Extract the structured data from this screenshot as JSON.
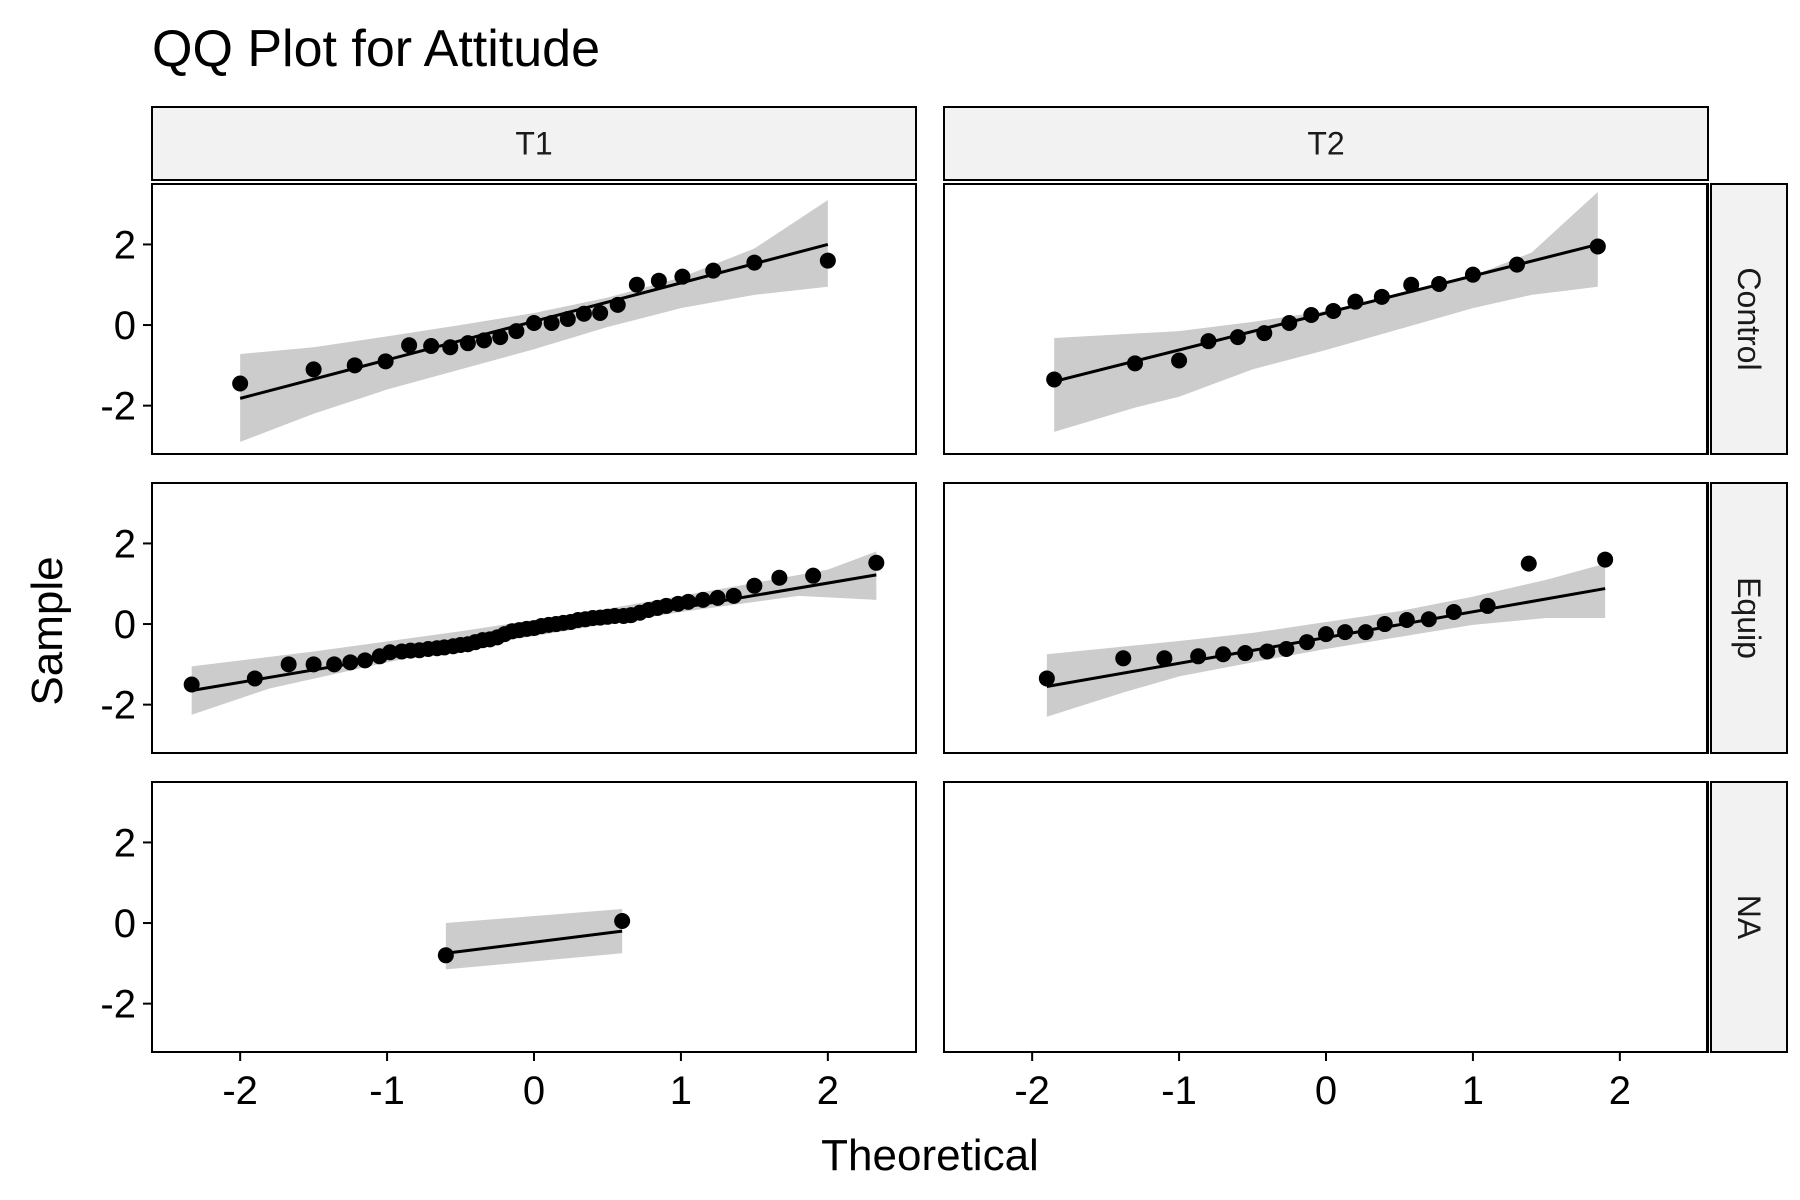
{
  "chart_data": {
    "type": "scatter",
    "title": "QQ Plot for Attitude",
    "xlabel": "Theoretical",
    "ylabel": "Sample",
    "xlim": [
      -2.6,
      2.6
    ],
    "ylim": [
      -3.2,
      3.5
    ],
    "x_ticks": [
      "-2",
      "-1",
      "0",
      "1",
      "2"
    ],
    "y_ticks": [
      "-2",
      "0",
      "2"
    ],
    "columns": [
      "T1",
      "T2"
    ],
    "rows": [
      "Control",
      "Equip",
      "NA"
    ],
    "grid": false,
    "legend": "none",
    "colors": {
      "points": "#000000",
      "line": "#000000",
      "band": "#cccccc",
      "strip": "#f2f2f2"
    },
    "panels": [
      {
        "row": "Control",
        "col": "T1",
        "x": [
          -2.0,
          -1.5,
          -1.22,
          -1.01,
          -0.85,
          -0.7,
          -0.57,
          -0.45,
          -0.34,
          -0.23,
          -0.12,
          0.0,
          0.12,
          0.23,
          0.34,
          0.45,
          0.57,
          0.7,
          0.85,
          1.01,
          1.22,
          1.5,
          2.0
        ],
        "y": [
          -1.45,
          -1.1,
          -1.0,
          -0.9,
          -0.5,
          -0.52,
          -0.55,
          -0.45,
          -0.38,
          -0.3,
          -0.15,
          0.05,
          0.05,
          0.15,
          0.28,
          0.3,
          0.5,
          1.0,
          1.1,
          1.2,
          1.35,
          1.55,
          1.6
        ],
        "line": [
          [
            -2.0,
            -1.82
          ],
          [
            2.0,
            2.0
          ]
        ],
        "band_upper": [
          [
            -2.0,
            -0.72
          ],
          [
            -1.5,
            -0.55
          ],
          [
            -1.0,
            -0.28
          ],
          [
            -0.5,
            0.0
          ],
          [
            0.0,
            0.3
          ],
          [
            0.5,
            0.68
          ],
          [
            1.0,
            1.18
          ],
          [
            1.5,
            1.9
          ],
          [
            2.0,
            3.1
          ]
        ],
        "band_lower": [
          [
            -2.0,
            -2.9
          ],
          [
            -1.5,
            -2.2
          ],
          [
            -1.0,
            -1.6
          ],
          [
            -0.5,
            -1.1
          ],
          [
            0.0,
            -0.6
          ],
          [
            0.5,
            -0.05
          ],
          [
            1.0,
            0.42
          ],
          [
            1.5,
            0.75
          ],
          [
            2.0,
            0.95
          ]
        ]
      },
      {
        "row": "Control",
        "col": "T2",
        "x": [
          -1.85,
          -1.3,
          -1.0,
          -0.8,
          -0.6,
          -0.42,
          -0.25,
          -0.1,
          0.05,
          0.2,
          0.38,
          0.58,
          0.77,
          1.0,
          1.3,
          1.85
        ],
        "y": [
          -1.35,
          -0.95,
          -0.88,
          -0.4,
          -0.3,
          -0.2,
          0.05,
          0.25,
          0.35,
          0.58,
          0.7,
          1.0,
          1.02,
          1.25,
          1.5,
          1.95
        ],
        "line": [
          [
            -1.85,
            -1.4
          ],
          [
            1.85,
            2.0
          ]
        ],
        "band_upper": [
          [
            -1.85,
            -0.32
          ],
          [
            -1.0,
            -0.15
          ],
          [
            -0.5,
            0.08
          ],
          [
            0.0,
            0.35
          ],
          [
            0.5,
            0.75
          ],
          [
            1.0,
            1.22
          ],
          [
            1.4,
            1.8
          ],
          [
            1.85,
            3.3
          ]
        ],
        "band_lower": [
          [
            -1.85,
            -2.65
          ],
          [
            -1.3,
            -2.05
          ],
          [
            -1.0,
            -1.78
          ],
          [
            -0.5,
            -1.1
          ],
          [
            0.0,
            -0.62
          ],
          [
            0.5,
            -0.1
          ],
          [
            1.0,
            0.42
          ],
          [
            1.4,
            0.75
          ],
          [
            1.85,
            0.95
          ]
        ]
      },
      {
        "row": "Equip",
        "col": "T1",
        "x": [
          -2.33,
          -1.9,
          -1.67,
          -1.5,
          -1.36,
          -1.25,
          -1.15,
          -1.05,
          -0.98,
          -0.9,
          -0.84,
          -0.78,
          -0.72,
          -0.66,
          -0.61,
          -0.55,
          -0.5,
          -0.45,
          -0.4,
          -0.35,
          -0.3,
          -0.25,
          -0.2,
          -0.15,
          -0.1,
          -0.05,
          0.0,
          0.05,
          0.1,
          0.15,
          0.2,
          0.25,
          0.3,
          0.35,
          0.4,
          0.45,
          0.5,
          0.55,
          0.61,
          0.66,
          0.72,
          0.78,
          0.84,
          0.9,
          0.98,
          1.05,
          1.15,
          1.25,
          1.36,
          1.5,
          1.67,
          1.9,
          2.33
        ],
        "y": [
          -1.5,
          -1.35,
          -1.0,
          -1.0,
          -1.0,
          -0.95,
          -0.9,
          -0.8,
          -0.7,
          -0.68,
          -0.66,
          -0.65,
          -0.62,
          -0.6,
          -0.58,
          -0.55,
          -0.52,
          -0.5,
          -0.45,
          -0.4,
          -0.38,
          -0.33,
          -0.25,
          -0.18,
          -0.15,
          -0.12,
          -0.1,
          -0.05,
          -0.02,
          0.0,
          0.03,
          0.05,
          0.1,
          0.12,
          0.15,
          0.16,
          0.18,
          0.2,
          0.2,
          0.22,
          0.28,
          0.35,
          0.4,
          0.45,
          0.5,
          0.55,
          0.6,
          0.65,
          0.7,
          0.95,
          1.15,
          1.2,
          1.52
        ],
        "line": [
          [
            -2.33,
            -1.65
          ],
          [
            2.33,
            1.22
          ]
        ],
        "band_upper": [
          [
            -2.33,
            -1.05
          ],
          [
            -1.5,
            -0.68
          ],
          [
            -0.5,
            -0.18
          ],
          [
            0.0,
            0.1
          ],
          [
            0.5,
            0.38
          ],
          [
            1.0,
            0.7
          ],
          [
            1.5,
            1.02
          ],
          [
            2.0,
            1.35
          ],
          [
            2.33,
            1.8
          ]
        ],
        "band_lower": [
          [
            -2.33,
            -2.25
          ],
          [
            -1.8,
            -1.6
          ],
          [
            -1.0,
            -0.95
          ],
          [
            -0.5,
            -0.58
          ],
          [
            0.0,
            -0.3
          ],
          [
            0.5,
            0.0
          ],
          [
            1.0,
            0.3
          ],
          [
            1.8,
            0.7
          ],
          [
            2.33,
            0.6
          ]
        ]
      },
      {
        "row": "Equip",
        "col": "T2",
        "x": [
          -1.9,
          -1.38,
          -1.1,
          -0.87,
          -0.7,
          -0.55,
          -0.4,
          -0.27,
          -0.13,
          0.0,
          0.13,
          0.27,
          0.4,
          0.55,
          0.7,
          0.87,
          1.1,
          1.38,
          1.9
        ],
        "y": [
          -1.35,
          -0.85,
          -0.85,
          -0.8,
          -0.75,
          -0.72,
          -0.68,
          -0.62,
          -0.45,
          -0.25,
          -0.2,
          -0.2,
          0.0,
          0.1,
          0.12,
          0.3,
          0.45,
          1.5,
          1.6
        ],
        "line": [
          [
            -1.9,
            -1.55
          ],
          [
            1.9,
            0.88
          ]
        ],
        "band_upper": [
          [
            -1.9,
            -0.75
          ],
          [
            -1.0,
            -0.42
          ],
          [
            -0.5,
            -0.22
          ],
          [
            0.0,
            0.05
          ],
          [
            0.5,
            0.32
          ],
          [
            1.0,
            0.68
          ],
          [
            1.5,
            1.1
          ],
          [
            1.9,
            1.5
          ]
        ],
        "band_lower": [
          [
            -1.9,
            -2.3
          ],
          [
            -1.38,
            -1.7
          ],
          [
            -1.0,
            -1.3
          ],
          [
            -0.5,
            -0.95
          ],
          [
            0.0,
            -0.62
          ],
          [
            0.5,
            -0.32
          ],
          [
            1.0,
            -0.02
          ],
          [
            1.5,
            0.15
          ],
          [
            1.9,
            0.15
          ]
        ]
      },
      {
        "row": "NA",
        "col": "T1",
        "x": [
          -0.6,
          0.6
        ],
        "y": [
          -0.8,
          0.05
        ],
        "line": [
          [
            -0.6,
            -0.75
          ],
          [
            0.6,
            -0.2
          ]
        ],
        "band_upper": [
          [
            -0.6,
            0.0
          ],
          [
            0.6,
            0.35
          ]
        ],
        "band_lower": [
          [
            -0.6,
            -1.15
          ],
          [
            0.6,
            -0.75
          ]
        ]
      },
      {
        "row": "NA",
        "col": "T2",
        "x": [],
        "y": [],
        "line": [],
        "band_upper": [],
        "band_lower": []
      }
    ]
  }
}
